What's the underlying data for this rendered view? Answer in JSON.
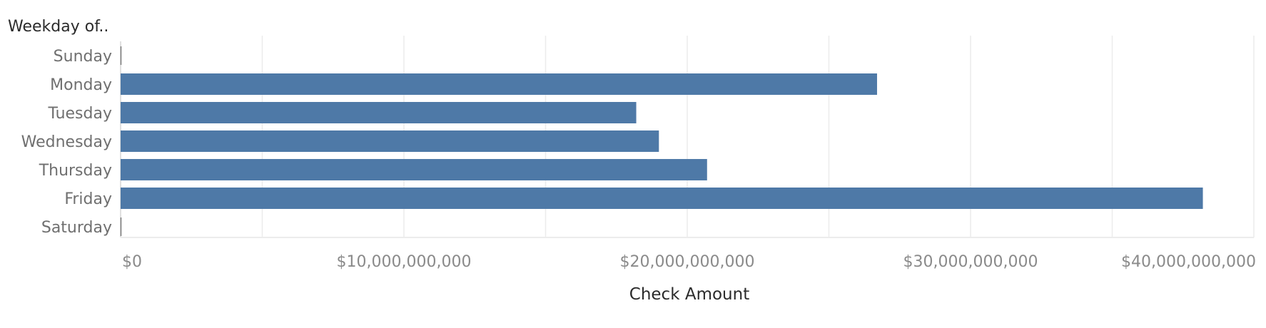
{
  "chart_data": {
    "type": "bar",
    "orientation": "horizontal",
    "row_header": "Weekday of..",
    "categories": [
      "Sunday",
      "Monday",
      "Tuesday",
      "Wednesday",
      "Thursday",
      "Friday",
      "Saturday"
    ],
    "values": [
      0,
      26700000000,
      18200000000,
      19000000000,
      20700000000,
      38200000000,
      0
    ],
    "xlabel": "Check Amount",
    "ylabel": "",
    "xlim": [
      0,
      40000000000
    ],
    "ticks": [
      0,
      10000000000,
      20000000000,
      30000000000,
      40000000000
    ],
    "tick_labels": [
      "$0",
      "$10,000,000,000",
      "$20,000,000,000",
      "$30,000,000,000",
      "$40,000,000,000"
    ],
    "grid": true,
    "colors": {
      "bar": "#4e79a7",
      "grid": "#ececec",
      "axis": "#d6d6d6"
    }
  }
}
